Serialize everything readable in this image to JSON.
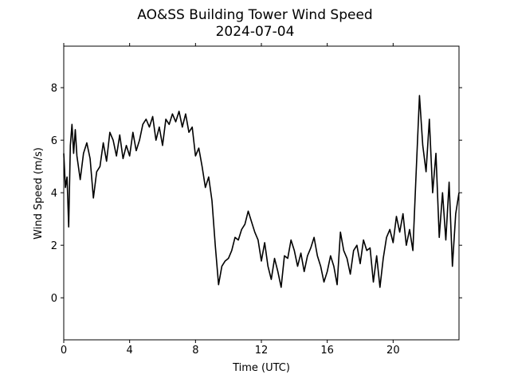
{
  "chart_data": {
    "type": "line",
    "title": "AO&SS Building Tower Wind Speed",
    "subtitle": "2024-07-04",
    "x_label": "Time (UTC)",
    "y_label": "Wind Speed (m/s)",
    "xlim": [
      0,
      24
    ],
    "xticks": [
      0,
      4,
      8,
      12,
      16,
      20
    ],
    "ylim": [
      -1.6,
      9.58
    ],
    "yticks": [
      0,
      2,
      4,
      6,
      8
    ],
    "x": [
      0,
      0.1,
      0.2,
      0.3,
      0.4,
      0.5,
      0.6,
      0.7,
      0.8,
      1.0,
      1.2,
      1.4,
      1.6,
      1.8,
      2.0,
      2.2,
      2.4,
      2.6,
      2.8,
      3.0,
      3.2,
      3.4,
      3.6,
      3.8,
      4.0,
      4.2,
      4.4,
      4.6,
      4.8,
      5.0,
      5.2,
      5.4,
      5.6,
      5.8,
      6.0,
      6.2,
      6.4,
      6.6,
      6.8,
      7.0,
      7.2,
      7.4,
      7.6,
      7.8,
      8.0,
      8.2,
      8.4,
      8.6,
      8.8,
      9.0,
      9.2,
      9.4,
      9.6,
      9.8,
      10.0,
      10.2,
      10.4,
      10.6,
      10.8,
      11.0,
      11.2,
      11.4,
      11.6,
      11.8,
      12.0,
      12.2,
      12.4,
      12.6,
      12.8,
      13.0,
      13.2,
      13.4,
      13.6,
      13.8,
      14.0,
      14.2,
      14.4,
      14.6,
      14.8,
      15.0,
      15.2,
      15.4,
      15.6,
      15.8,
      16.0,
      16.2,
      16.4,
      16.6,
      16.8,
      17.0,
      17.2,
      17.4,
      17.6,
      17.8,
      18.0,
      18.2,
      18.4,
      18.6,
      18.8,
      19.0,
      19.2,
      19.4,
      19.6,
      19.8,
      20.0,
      20.2,
      20.4,
      20.6,
      20.8,
      21.0,
      21.2,
      21.4,
      21.6,
      21.8,
      22.0,
      22.2,
      22.4,
      22.6,
      22.8,
      23.0,
      23.2,
      23.4,
      23.6,
      23.8,
      24.0
    ],
    "series": [
      {
        "color": "#000000",
        "values": [
          5.5,
          4.2,
          4.6,
          2.7,
          5.8,
          6.6,
          5.5,
          6.4,
          5.4,
          4.5,
          5.5,
          5.9,
          5.3,
          3.8,
          4.8,
          5.0,
          5.9,
          5.2,
          6.3,
          6.0,
          5.4,
          6.2,
          5.3,
          5.8,
          5.4,
          6.3,
          5.6,
          6.0,
          6.6,
          6.8,
          6.5,
          6.9,
          6.0,
          6.5,
          5.8,
          6.8,
          6.6,
          7.0,
          6.7,
          7.1,
          6.5,
          7.0,
          6.3,
          6.5,
          5.4,
          5.7,
          5.0,
          4.2,
          4.6,
          3.7,
          2.0,
          0.5,
          1.2,
          1.4,
          1.5,
          1.8,
          2.3,
          2.2,
          2.6,
          2.8,
          3.3,
          2.9,
          2.5,
          2.2,
          1.4,
          2.1,
          1.2,
          0.7,
          1.5,
          1.0,
          0.4,
          1.6,
          1.5,
          2.2,
          1.8,
          1.2,
          1.7,
          1.0,
          1.6,
          1.9,
          2.3,
          1.6,
          1.2,
          0.6,
          1.0,
          1.6,
          1.2,
          0.5,
          2.5,
          1.8,
          1.5,
          0.9,
          1.8,
          2.0,
          1.3,
          2.2,
          1.8,
          1.9,
          0.6,
          1.6,
          0.4,
          1.5,
          2.3,
          2.6,
          2.1,
          3.1,
          2.5,
          3.2,
          2.0,
          2.6,
          1.8,
          4.8,
          7.7,
          5.8,
          4.8,
          6.8,
          4.0,
          5.5,
          2.3,
          4.0,
          2.2,
          4.4,
          1.2,
          3.2,
          4.0
        ]
      }
    ]
  }
}
